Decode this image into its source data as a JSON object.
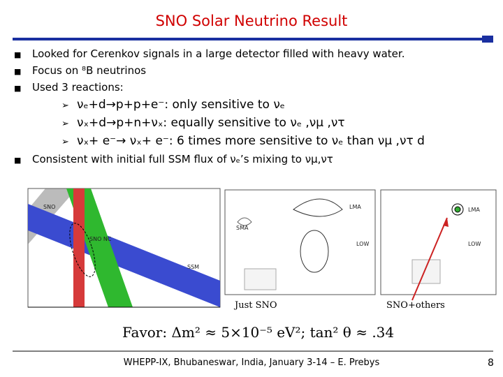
{
  "title": "SNO Solar Neutrino Result",
  "bullets": [
    "Looked for Cerenkov signals in a large detector filled with heavy water.",
    "Focus on ⁸B neutrinos",
    "Used 3 reactions:"
  ],
  "reactions": [
    "νₑ+d→p+p+e⁻: only sensitive to νₑ",
    "νₓ+d→p+n+νₓ: equally sensitive to νₑ ,νμ ,ντ",
    "νₓ+ e⁻→ νₓ+ e⁻: 6 times more sensitive to νₑ than νμ ,ντ d"
  ],
  "conclusion": "Consistent with initial full SSM flux of νₑ’s mixing to νμ,ντ",
  "figure": {
    "left_labels": [
      "SNO",
      "SSM",
      "SNO NC"
    ],
    "middle_labels": [
      "SMA",
      "LMA",
      "LOW"
    ],
    "right_labels": [
      "LMA",
      "LOW"
    ],
    "caption_left": "Just SNO",
    "caption_right": "SNO+others",
    "formula": "Favor: Δm² ≈ 5×10⁻⁵ eV²; tan² θ ≈ .34"
  },
  "footer": "WHEPP-IX, Bhubaneswar, India, January 3-14 – E. Prebys",
  "page_number": "8"
}
